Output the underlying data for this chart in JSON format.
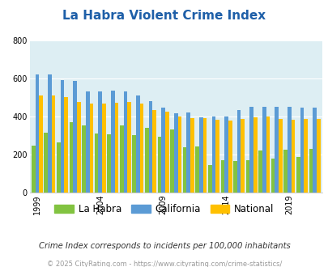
{
  "title": "La Habra Violent Crime Index",
  "years": [
    1999,
    2000,
    2001,
    2002,
    2003,
    2004,
    2005,
    2006,
    2007,
    2008,
    2009,
    2010,
    2011,
    2012,
    2013,
    2014,
    2015,
    2016,
    2017,
    2018,
    2019,
    2020,
    2021
  ],
  "la_habra": [
    245,
    315,
    260,
    370,
    350,
    310,
    305,
    350,
    300,
    340,
    290,
    330,
    235,
    240,
    145,
    170,
    165,
    170,
    220,
    175,
    225,
    185,
    230
  ],
  "california": [
    620,
    620,
    590,
    585,
    530,
    530,
    535,
    530,
    510,
    480,
    445,
    415,
    420,
    395,
    400,
    400,
    430,
    450,
    450,
    450,
    450,
    445,
    445
  ],
  "national": [
    510,
    510,
    500,
    475,
    465,
    465,
    470,
    475,
    465,
    430,
    425,
    400,
    390,
    390,
    380,
    375,
    385,
    395,
    400,
    385,
    380,
    385,
    385
  ],
  "bar_color_lahabra": "#82c341",
  "bar_color_california": "#5b9bd5",
  "bar_color_national": "#ffc000",
  "bg_color": "#ddeef3",
  "ylim": [
    0,
    800
  ],
  "yticks": [
    0,
    200,
    400,
    600,
    800
  ],
  "xlabel_ticks": [
    1999,
    2004,
    2009,
    2014,
    2019
  ],
  "subtitle": "Crime Index corresponds to incidents per 100,000 inhabitants",
  "footer": "© 2025 CityRating.com - https://www.cityrating.com/crime-statistics/",
  "legend_labels": [
    "La Habra",
    "California",
    "National"
  ],
  "title_color": "#1e5fa8",
  "subtitle_color": "#333333",
  "footer_color": "#999999"
}
